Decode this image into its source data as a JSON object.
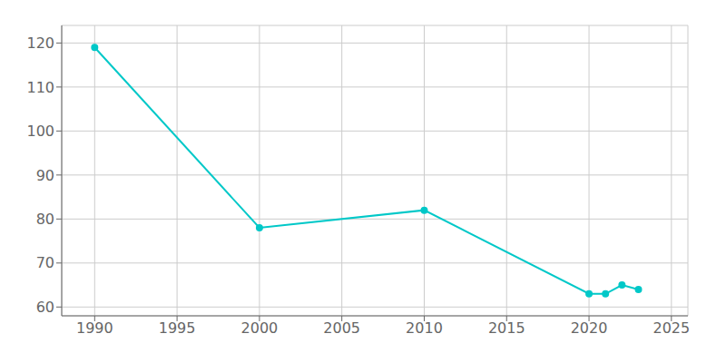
{
  "chart_data": {
    "type": "line",
    "x": [
      1990,
      2000,
      2010,
      2020,
      2021,
      2022,
      2023
    ],
    "values": [
      119,
      78,
      82,
      63,
      63,
      65,
      64
    ],
    "color": "#00C8C8",
    "marker": "circle",
    "xlim": [
      1988,
      2026
    ],
    "ylim": [
      58,
      124
    ],
    "xticks": [
      1990,
      1995,
      2000,
      2005,
      2010,
      2015,
      2020,
      2025
    ],
    "yticks": [
      60,
      70,
      80,
      90,
      100,
      110,
      120
    ],
    "grid": true
  }
}
